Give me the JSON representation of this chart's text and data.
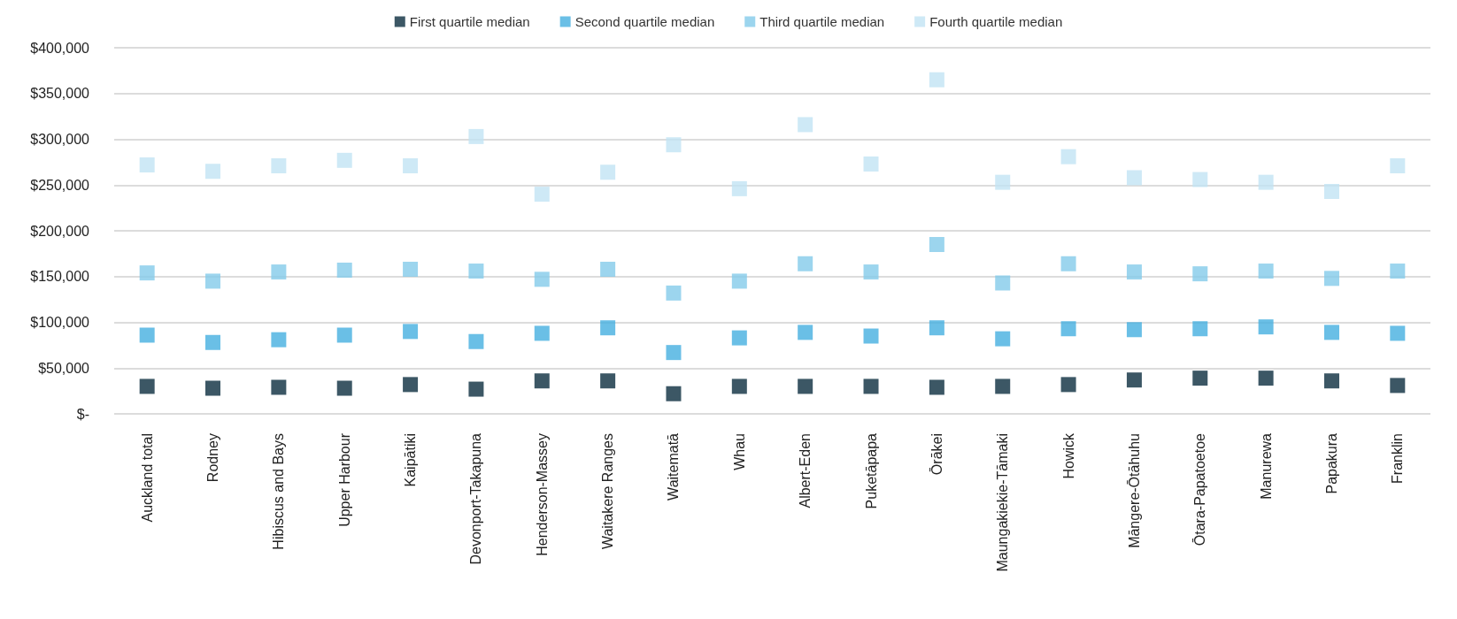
{
  "chart_data": {
    "type": "scatter",
    "marker": "square",
    "grid": "y",
    "legend": "top",
    "categories": [
      "Auckland total",
      "Rodney",
      "Hibiscus and Bays",
      "Upper Harbour",
      "Kaipātiki",
      "Devonport-Takapuna",
      "Henderson-Massey",
      "Waitakere Ranges",
      "Waitematā",
      "Whau",
      "Albert-Eden",
      "Puketāpapa",
      "Ōrākei",
      "Maungakiekie-Tāmaki",
      "Howick",
      "Māngere-Ōtāhuhu",
      "Ōtara-Papatoetoe",
      "Manurewa",
      "Papakura",
      "Franklin"
    ],
    "ylim": [
      0,
      400000
    ],
    "yticks": [
      {
        "value": 0,
        "label": "$-"
      },
      {
        "value": 50000,
        "label": "$50,000"
      },
      {
        "value": 100000,
        "label": "$100,000"
      },
      {
        "value": 150000,
        "label": "$150,000"
      },
      {
        "value": 200000,
        "label": "$200,000"
      },
      {
        "value": 250000,
        "label": "$250,000"
      },
      {
        "value": 300000,
        "label": "$300,000"
      },
      {
        "value": 350000,
        "label": "$350,000"
      },
      {
        "value": 400000,
        "label": "$400,000"
      }
    ],
    "series": [
      {
        "name": "First quartile median",
        "color": "#0b2d3f",
        "values": [
          30000,
          28000,
          29000,
          28000,
          32000,
          27000,
          36000,
          36000,
          22000,
          30000,
          30000,
          30000,
          29000,
          30000,
          32000,
          37000,
          39000,
          39000,
          36000,
          31000
        ]
      },
      {
        "name": "Second quartile median",
        "color": "#45afe0",
        "values": [
          86000,
          78000,
          81000,
          86000,
          90000,
          79000,
          88000,
          94000,
          67000,
          83000,
          89000,
          85000,
          94000,
          82000,
          93000,
          92000,
          93000,
          95000,
          89000,
          88000
        ]
      },
      {
        "name": "Third quartile median",
        "color": "#83cbea",
        "values": [
          154000,
          145000,
          155000,
          157000,
          158000,
          156000,
          147000,
          158000,
          132000,
          145000,
          164000,
          155000,
          185000,
          143000,
          164000,
          155000,
          153000,
          156000,
          148000,
          156000
        ]
      },
      {
        "name": "Fourth quartile median",
        "color": "#c2e4f4",
        "values": [
          272000,
          265000,
          271000,
          277000,
          271000,
          303000,
          240000,
          264000,
          294000,
          246000,
          316000,
          273000,
          365000,
          253000,
          281000,
          258000,
          256000,
          253000,
          243000,
          271000
        ]
      }
    ]
  }
}
